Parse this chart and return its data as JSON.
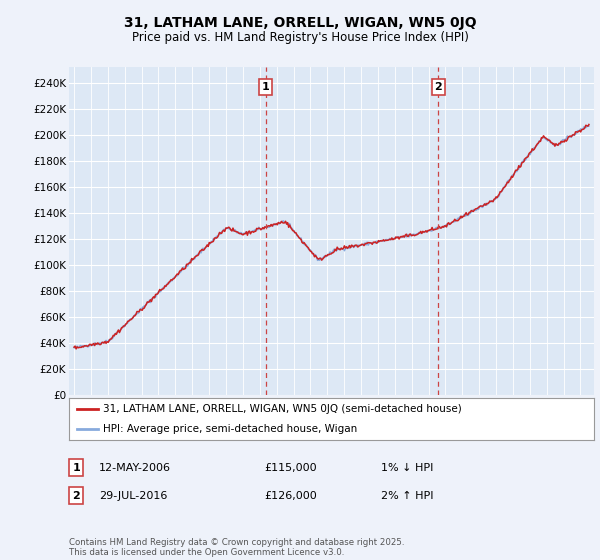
{
  "title_line1": "31, LATHAM LANE, ORRELL, WIGAN, WN5 0JQ",
  "title_line2": "Price paid vs. HM Land Registry's House Price Index (HPI)",
  "ylabel_ticks": [
    "£0",
    "£20K",
    "£40K",
    "£60K",
    "£80K",
    "£100K",
    "£120K",
    "£140K",
    "£160K",
    "£180K",
    "£200K",
    "£220K",
    "£240K"
  ],
  "ytick_values": [
    0,
    20000,
    40000,
    60000,
    80000,
    100000,
    120000,
    140000,
    160000,
    180000,
    200000,
    220000,
    240000
  ],
  "ylim": [
    0,
    252000
  ],
  "xlim_start": 1994.7,
  "xlim_end": 2025.8,
  "background_color": "#eef2fa",
  "plot_bg_color": "#dde8f5",
  "grid_color": "#ffffff",
  "hpi_color": "#88aadd",
  "price_color": "#cc2222",
  "dashed_color": "#cc4444",
  "marker1_x": 2006.36,
  "marker2_x": 2016.57,
  "marker1_label": "1",
  "marker2_label": "2",
  "sale1_date": "12-MAY-2006",
  "sale1_price": "£115,000",
  "sale1_hpi": "1% ↓ HPI",
  "sale2_date": "29-JUL-2016",
  "sale2_price": "£126,000",
  "sale2_hpi": "2% ↑ HPI",
  "legend_line1": "31, LATHAM LANE, ORRELL, WIGAN, WN5 0JQ (semi-detached house)",
  "legend_line2": "HPI: Average price, semi-detached house, Wigan",
  "footnote": "Contains HM Land Registry data © Crown copyright and database right 2025.\nThis data is licensed under the Open Government Licence v3.0."
}
